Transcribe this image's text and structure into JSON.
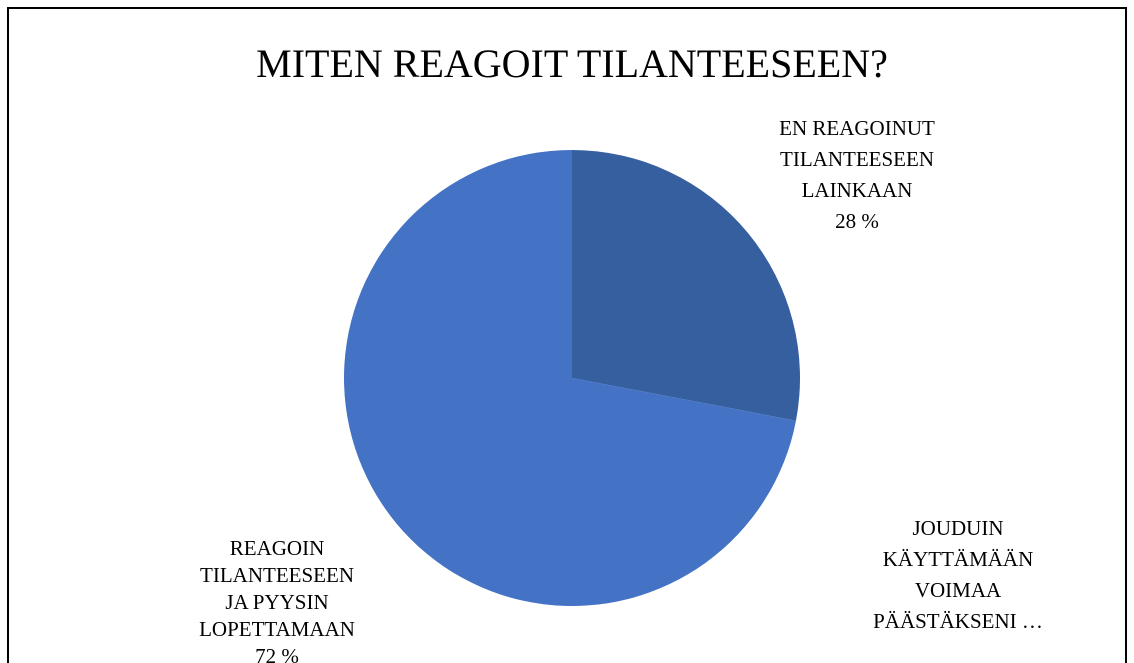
{
  "chart_data": {
    "type": "pie",
    "title": "MITEN REAGOIT TILANTEESEEN?",
    "categories": [
      "EN REAGOINUT\nTILANTEESEEN\nLAINKAAN",
      "JOUDUIN\nKÄYTTÄMÄÄN\nVOIMAA\nPÄÄSTÄKSENI …",
      "REAGOIN\nTILANTEESEEN\nJA PYYSIN\nLOPETTAMAAN"
    ],
    "values": [
      28,
      0,
      72
    ],
    "value_labels": [
      "28 %",
      null,
      "72 %"
    ],
    "colors": [
      "#355f9f",
      "#a5a5a5",
      "#4472c4"
    ]
  }
}
